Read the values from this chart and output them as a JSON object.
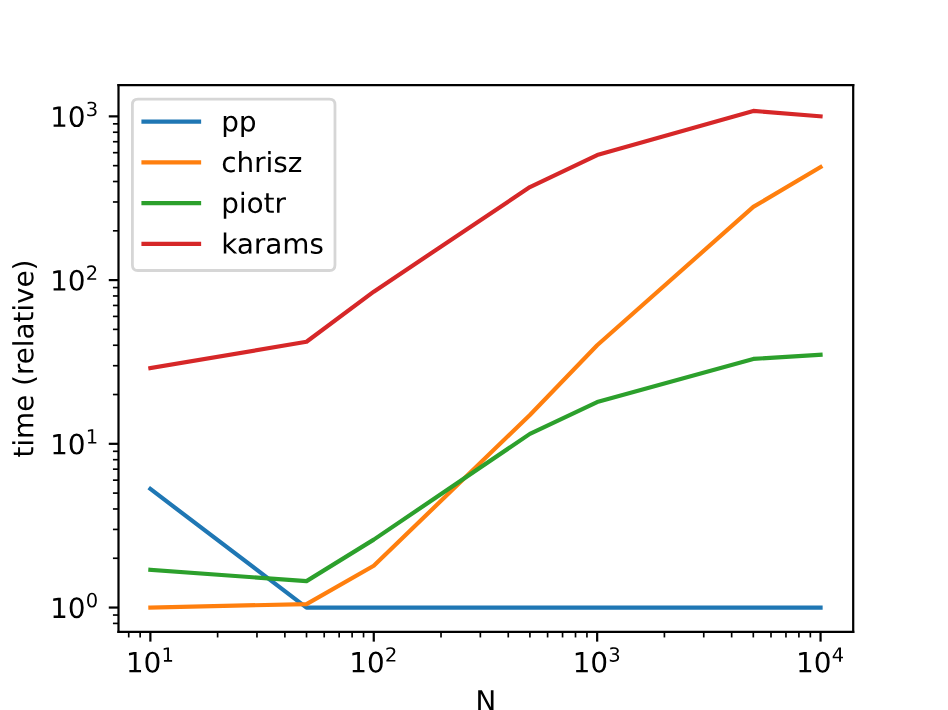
{
  "chart_data": {
    "type": "line",
    "xlabel": "N",
    "ylabel": "time (relative)",
    "log": "xy",
    "legend": "top left",
    "grid": false,
    "x": [
      10,
      50,
      100,
      500,
      1000,
      5000,
      10000
    ],
    "xlim": [
      7.2,
      14000
    ],
    "ylim": [
      0.71,
      1550
    ],
    "xticks": [
      {
        "value": 10,
        "label": "10$^{1}$"
      },
      {
        "value": 100,
        "label": "10$^{2}$"
      },
      {
        "value": 1000,
        "label": "10$^{3}$"
      },
      {
        "value": 10000,
        "label": "10$^{4}$"
      }
    ],
    "yticks": [
      {
        "value": 1,
        "label": "10$^{0}$"
      },
      {
        "value": 10,
        "label": "10$^{1}$"
      },
      {
        "value": 100,
        "label": "10$^{2}$"
      },
      {
        "value": 1000,
        "label": "10$^{3}$"
      }
    ],
    "series": [
      {
        "name": "pp",
        "color": "#1f77b4",
        "values": [
          5.3,
          1,
          1,
          1,
          1,
          1,
          1
        ]
      },
      {
        "name": "chrisz",
        "color": "#ff7f0e",
        "values": [
          1.0,
          1.05,
          1.8,
          15,
          40,
          280,
          490
        ]
      },
      {
        "name": "piotr",
        "color": "#2ca02c",
        "values": [
          1.7,
          1.45,
          2.6,
          11.5,
          18,
          33,
          35
        ]
      },
      {
        "name": "karams",
        "color": "#d62728",
        "values": [
          29,
          42,
          85,
          370,
          580,
          1080,
          1000
        ]
      }
    ]
  }
}
